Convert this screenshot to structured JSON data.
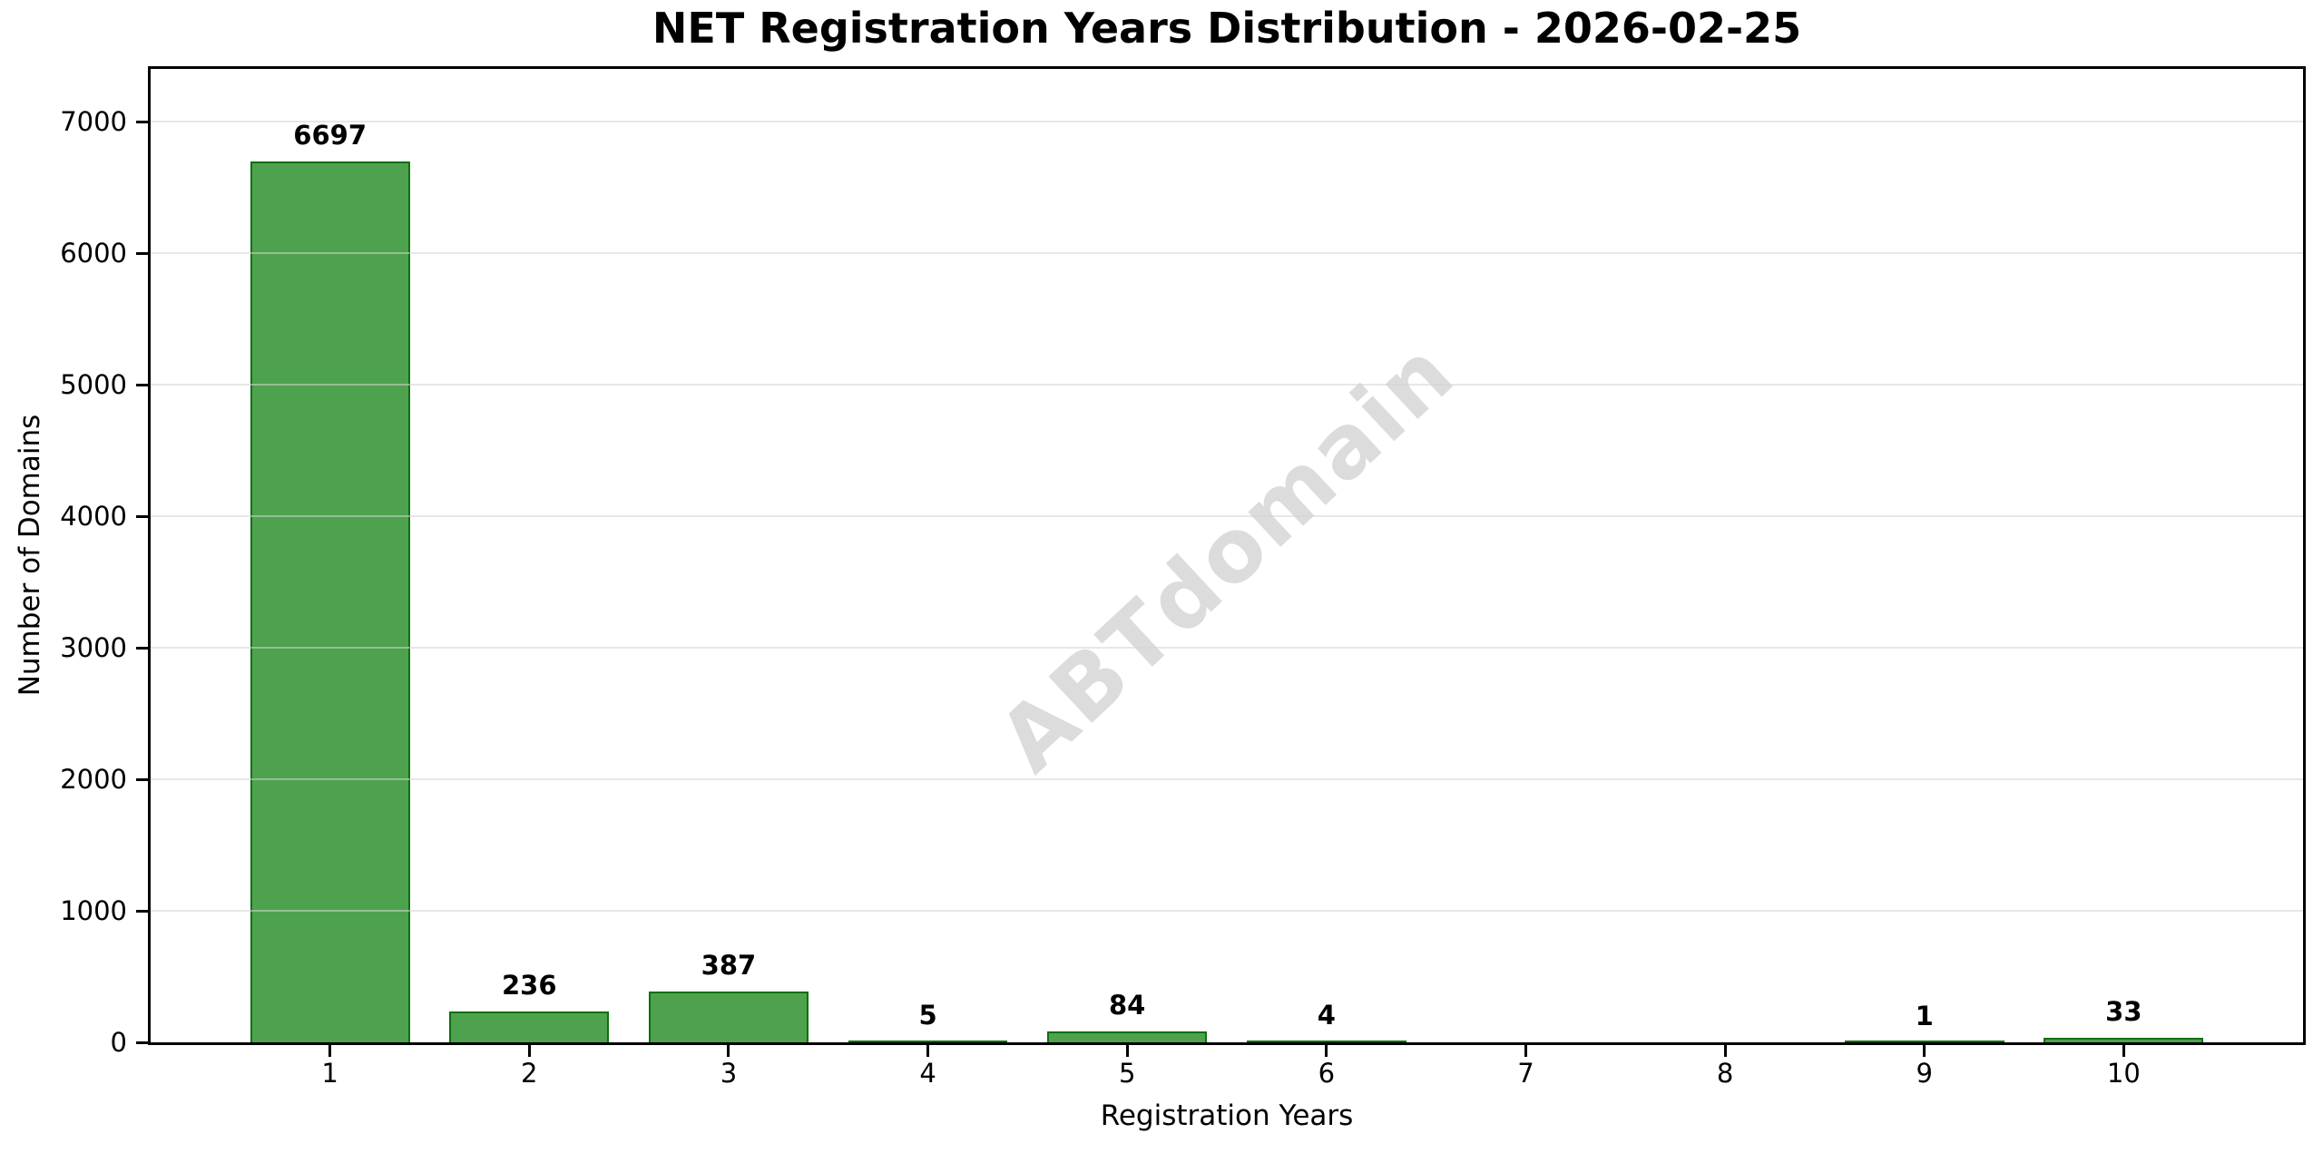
{
  "figure": {
    "watermark": "ABTdomain"
  },
  "chart_data": {
    "type": "bar",
    "title": "NET Registration Years Distribution - 2026-02-25",
    "xlabel": "Registration Years",
    "ylabel": "Number of Domains",
    "x": [
      1,
      2,
      3,
      4,
      5,
      6,
      7,
      8,
      9,
      10
    ],
    "values": [
      6697,
      236,
      387,
      5,
      84,
      4,
      0,
      0,
      1,
      33
    ],
    "bar_value_labels": [
      "6697",
      "236",
      "387",
      "5",
      "84",
      "4",
      "",
      "",
      "1",
      "33"
    ],
    "xticks": [
      "1",
      "2",
      "3",
      "4",
      "5",
      "6",
      "7",
      "8",
      "9",
      "10"
    ],
    "yticks": [
      0,
      1000,
      2000,
      3000,
      4000,
      5000,
      6000,
      7000
    ],
    "ylim": [
      0,
      7400
    ],
    "xlim": [
      0.1,
      10.9
    ],
    "bar_rel_width": 0.8,
    "grid": "horizontal",
    "legend": "none",
    "watermark": "ABTdomain",
    "colors": {
      "bar_fill": "#228B22",
      "bar_fill_alpha": 0.8,
      "bar_edge": "#006400",
      "bar_edge_alpha": 0.8,
      "gridline": "#D3D3D3",
      "gridline_alpha": 0.55,
      "watermark_text": "#DCDCDC",
      "axis": "#000000",
      "text": "#000000",
      "background": "#FFFFFF"
    }
  }
}
